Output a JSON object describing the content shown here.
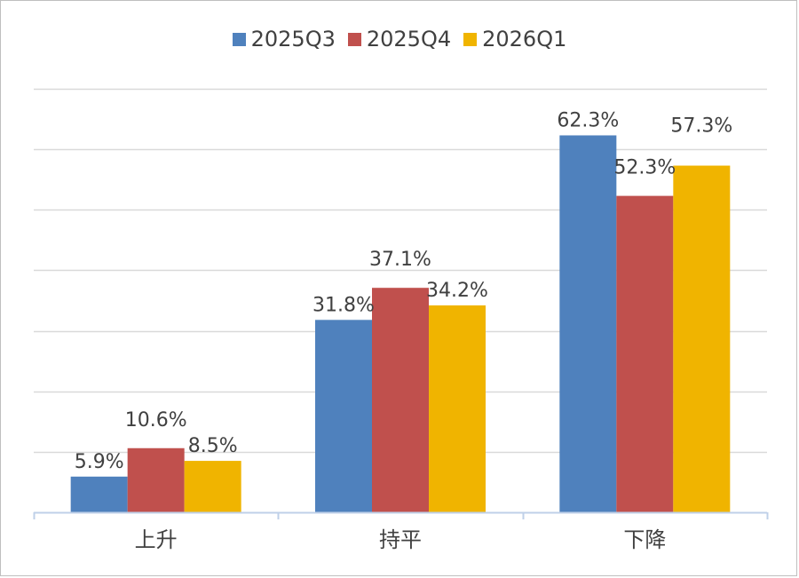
{
  "chart_data": {
    "type": "bar",
    "categories": [
      "上升",
      "持平",
      "下降"
    ],
    "series": [
      {
        "name": "2025Q3",
        "values": [
          5.9,
          31.8,
          62.3
        ],
        "labels": [
          "5.9%",
          "31.8%",
          "62.3%"
        ],
        "color": "#4f81bd"
      },
      {
        "name": "2025Q4",
        "values": [
          10.6,
          37.1,
          52.3
        ],
        "labels": [
          "10.6%",
          "37.1%",
          "52.3%"
        ],
        "color": "#c0504d"
      },
      {
        "name": "2026Q1",
        "values": [
          8.5,
          34.2,
          57.3
        ],
        "labels": [
          "8.5%",
          "34.2%",
          "57.3%"
        ],
        "color": "#f0b400"
      }
    ],
    "ylim": [
      0,
      70
    ],
    "grid": true,
    "legend_position": "top",
    "axis_color": "#bfd0e8",
    "grid_color": "#d9d9d9",
    "text_color": "#404040"
  }
}
